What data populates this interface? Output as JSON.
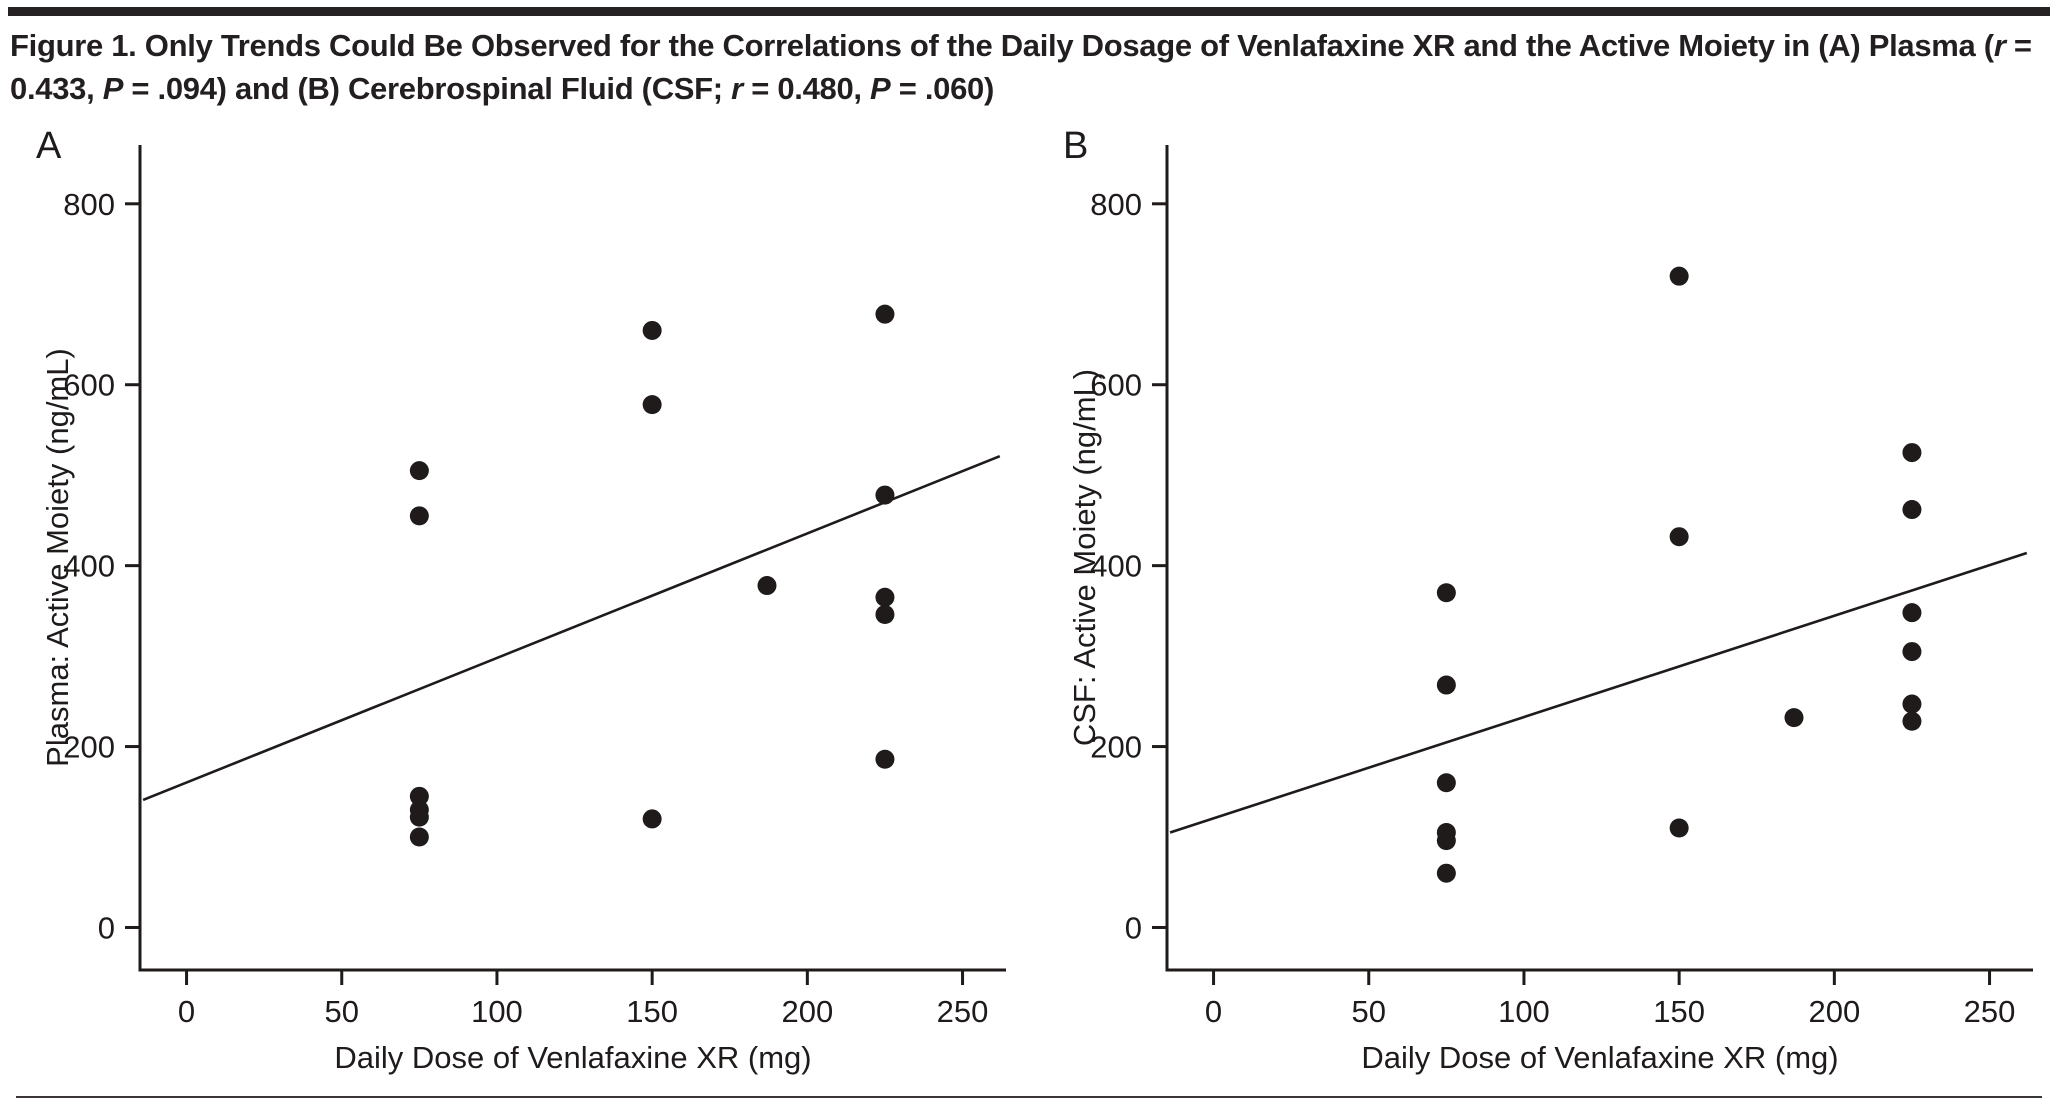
{
  "colors": {
    "ink": "#1e1b1a",
    "title": "#231f20"
  },
  "figure": {
    "title_segments": [
      {
        "text": "Figure 1. Only Trends Could Be Observed for the Correlations of the Daily Dosage of Venlafaxine XR and the Active Moiety in (A) Plasma (",
        "style": "b"
      },
      {
        "text": "r",
        "style": "bi"
      },
      {
        "text": " = 0.433, ",
        "style": "b"
      },
      {
        "text": "P",
        "style": "bi"
      },
      {
        "text": " = .094) and (B) Cerebrospinal Fluid (CSF; ",
        "style": "b"
      },
      {
        "text": "r",
        "style": "bi"
      },
      {
        "text": " = 0.480, ",
        "style": "b"
      },
      {
        "text": "P",
        "style": "bi"
      },
      {
        "text": " = .060)",
        "style": "b"
      }
    ]
  },
  "chart_data": [
    {
      "type": "scatter",
      "panel_label": "A",
      "xlabel": "Daily Dose of Venlafaxine XR (mg)",
      "ylabel": "Plasma: Active Moiety (ng/mL)",
      "xticks": [
        0,
        50,
        100,
        150,
        200,
        250
      ],
      "yticks": [
        0,
        200,
        400,
        600,
        800
      ],
      "xlim": [
        -15,
        264
      ],
      "ylim": [
        -47,
        865
      ],
      "grid": false,
      "correlation": {
        "r": "0.433",
        "P": ".094"
      },
      "points": [
        [
          75,
          505
        ],
        [
          75,
          455
        ],
        [
          75,
          145
        ],
        [
          75,
          130
        ],
        [
          75,
          122
        ],
        [
          75,
          100
        ],
        [
          150,
          660
        ],
        [
          150,
          578
        ],
        [
          150,
          120
        ],
        [
          187,
          378
        ],
        [
          225,
          678
        ],
        [
          225,
          478
        ],
        [
          225,
          365
        ],
        [
          225,
          346
        ],
        [
          225,
          186
        ]
      ],
      "trend_line": {
        "x1": -14,
        "y1": 141,
        "x2": 262,
        "y2": 521
      }
    },
    {
      "type": "scatter",
      "panel_label": "B",
      "xlabel": "Daily Dose of Venlafaxine XR (mg)",
      "ylabel": "CSF: Active Moiety (ng/mL)",
      "xticks": [
        0,
        50,
        100,
        150,
        200,
        250
      ],
      "yticks": [
        0,
        200,
        400,
        600,
        800
      ],
      "xlim": [
        -15,
        264
      ],
      "ylim": [
        -47,
        865
      ],
      "grid": false,
      "correlation": {
        "r": "0.480",
        "P": ".060"
      },
      "points": [
        [
          75,
          370
        ],
        [
          75,
          268
        ],
        [
          75,
          160
        ],
        [
          75,
          105
        ],
        [
          75,
          96
        ],
        [
          75,
          60
        ],
        [
          150,
          720
        ],
        [
          150,
          432
        ],
        [
          150,
          110
        ],
        [
          187,
          232
        ],
        [
          225,
          525
        ],
        [
          225,
          462
        ],
        [
          225,
          348
        ],
        [
          225,
          305
        ],
        [
          225,
          247
        ],
        [
          225,
          228
        ]
      ],
      "trend_line": {
        "x1": -14,
        "y1": 105,
        "x2": 262,
        "y2": 414
      }
    }
  ]
}
